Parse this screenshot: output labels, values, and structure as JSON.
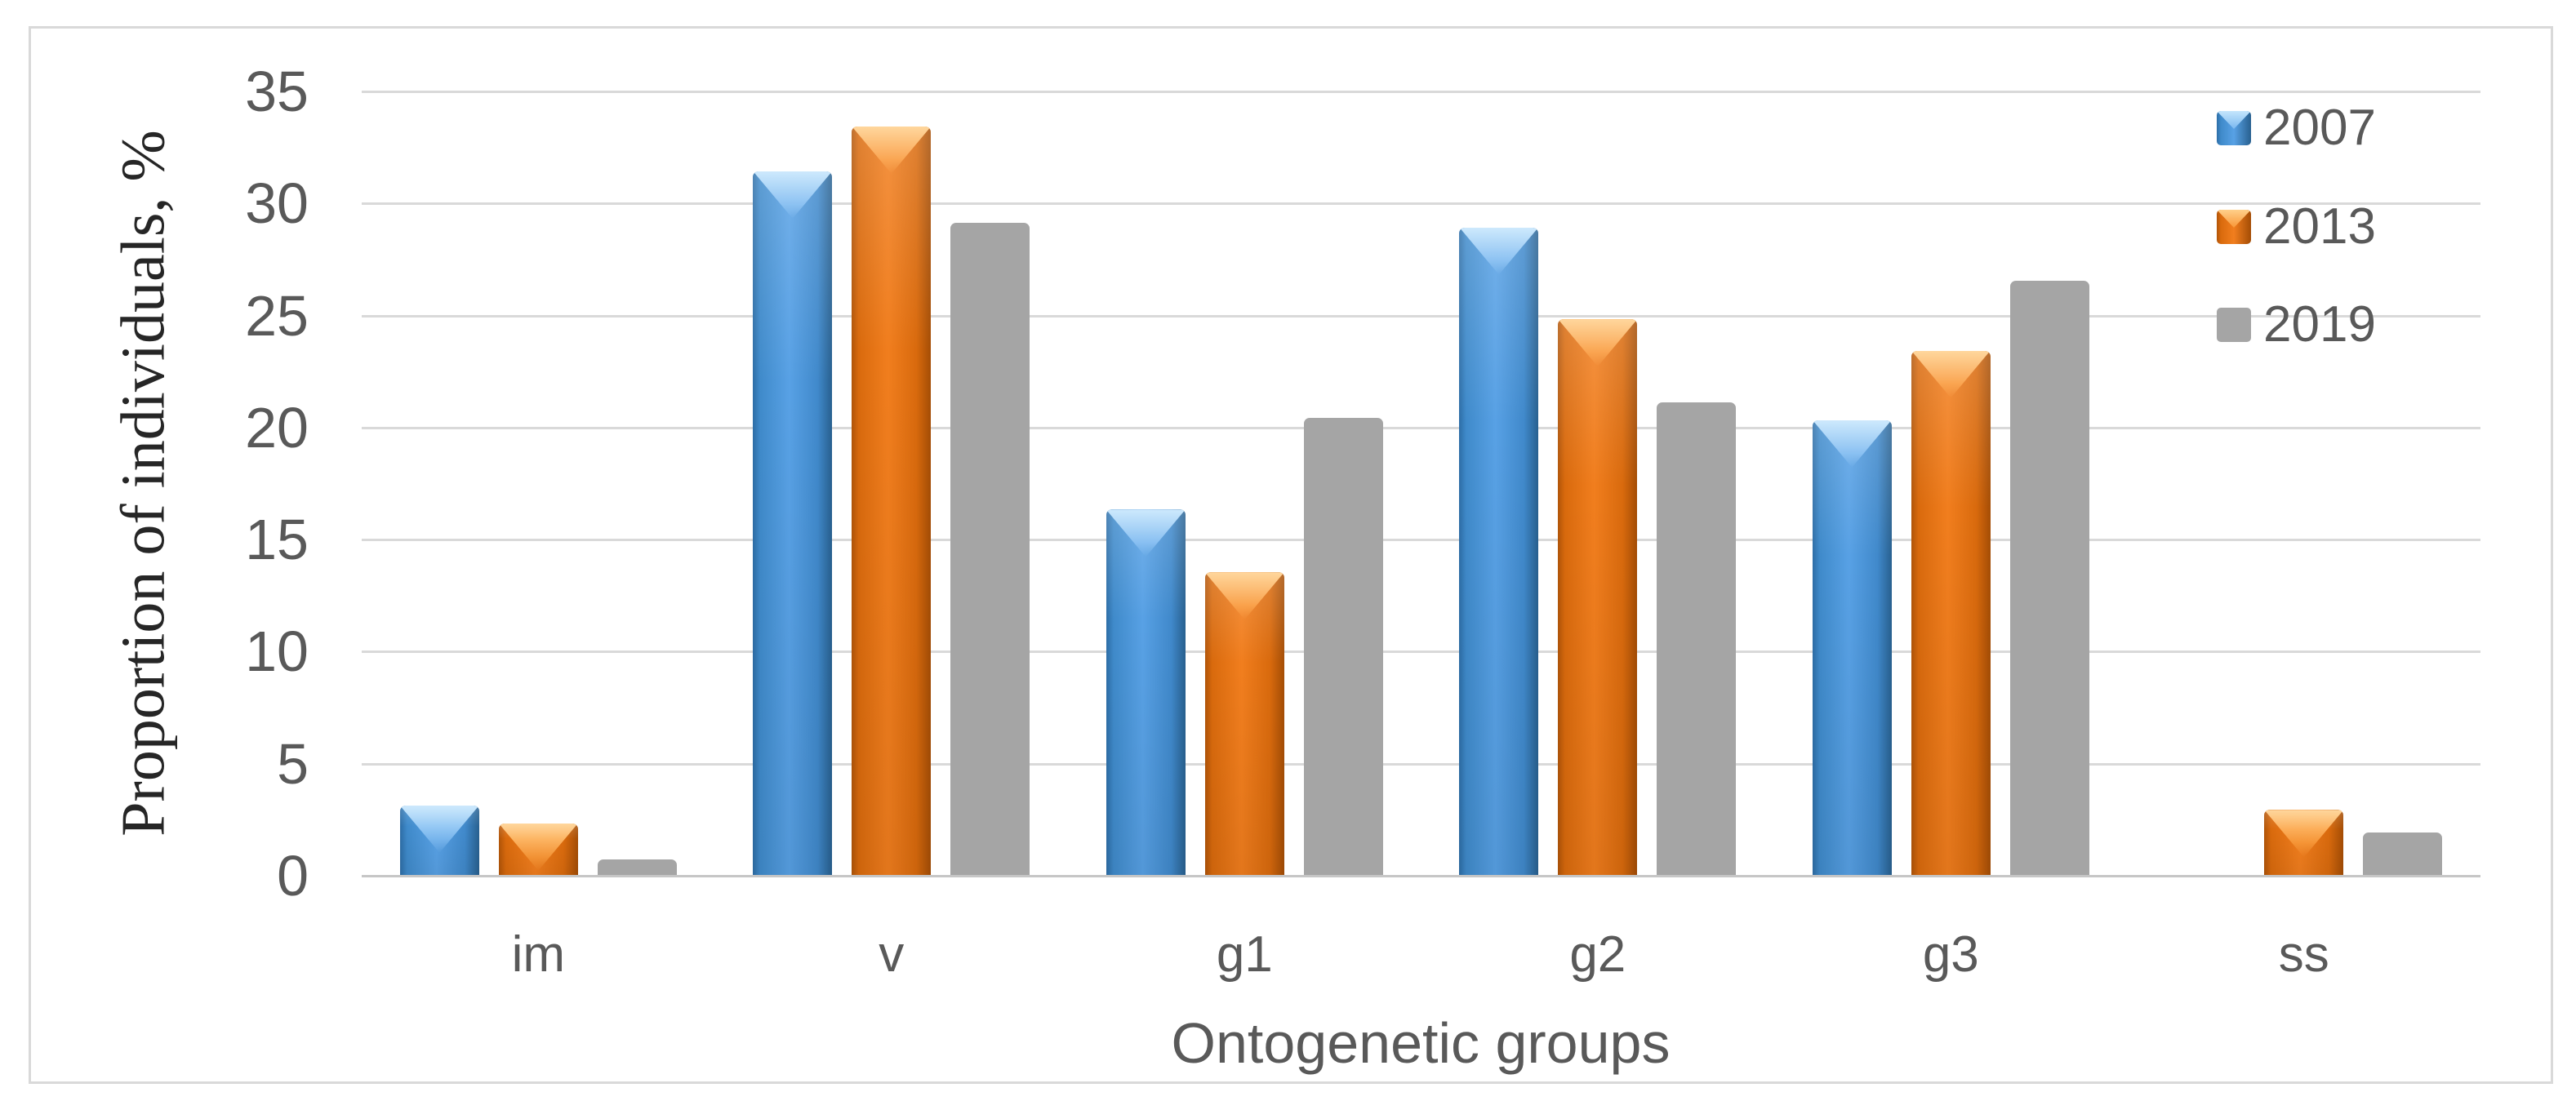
{
  "figure": {
    "background": "#ffffff",
    "border_color": "#d9d9d9"
  },
  "chart_data": {
    "type": "bar",
    "title": "",
    "xlabel": "Ontogenetic groups",
    "ylabel": "Proportion of individuals, %",
    "categories": [
      "im",
      "v",
      "g1",
      "g2",
      "g3",
      "ss"
    ],
    "series": [
      {
        "name": "2007",
        "color": "#4a90d6",
        "bevel": true,
        "values": [
          3.1,
          31.4,
          16.3,
          28.9,
          20.3,
          0
        ]
      },
      {
        "name": "2013",
        "color": "#ed7d1d",
        "bevel": true,
        "values": [
          2.3,
          33.4,
          13.5,
          24.8,
          23.4,
          2.9
        ]
      },
      {
        "name": "2019",
        "color": "#a5a5a5",
        "bevel": false,
        "values": [
          0.7,
          29.1,
          20.4,
          21.1,
          26.5,
          1.9
        ]
      }
    ],
    "y_axis": {
      "min": 0,
      "max": 35,
      "step": 5,
      "ticks": [
        0,
        5,
        10,
        15,
        20,
        25,
        30,
        35
      ]
    },
    "legend": {
      "position": "top-right",
      "entries": [
        "2007",
        "2013",
        "2019"
      ]
    },
    "grid": true,
    "gridline_color": "#d9d9d9",
    "axis_line_color": "#c6c6c6",
    "label_color": "#595959",
    "note_missing": "no 2007 bar in category ss"
  }
}
